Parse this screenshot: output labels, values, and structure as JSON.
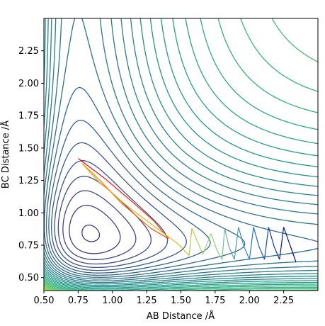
{
  "chart_data": {
    "type": "contour",
    "xlabel": "AB Distance /Å",
    "ylabel": "BC Distance /Å",
    "xlim": [
      0.5,
      2.5
    ],
    "ylim": [
      0.4,
      2.5
    ],
    "xticks": [
      "0.50",
      "0.75",
      "1.00",
      "1.25",
      "1.50",
      "1.75",
      "2.00",
      "2.25"
    ],
    "yticks": [
      "0.50",
      "0.75",
      "1.00",
      "1.25",
      "1.50",
      "1.75",
      "2.00",
      "2.25"
    ],
    "grid": false,
    "legend": "none",
    "colormap": "viridis",
    "contour_levels": 40,
    "trajectory": {
      "color_start": "#ff0000",
      "color_end": "#00008b",
      "points": [
        [
          0.75,
          1.42
        ],
        [
          0.95,
          1.26
        ],
        [
          1.15,
          1.08
        ],
        [
          1.3,
          0.94
        ],
        [
          1.41,
          0.8
        ],
        [
          1.28,
          0.88
        ],
        [
          1.06,
          1.08
        ],
        [
          0.9,
          1.26
        ],
        [
          0.78,
          1.38
        ],
        [
          0.9,
          1.24
        ],
        [
          1.1,
          1.06
        ],
        [
          1.3,
          0.9
        ],
        [
          1.48,
          0.76
        ],
        [
          1.56,
          0.67
        ],
        [
          1.58,
          0.88
        ],
        [
          1.62,
          0.78
        ],
        [
          1.66,
          0.68
        ],
        [
          1.72,
          0.84
        ],
        [
          1.76,
          0.72
        ],
        [
          1.8,
          0.64
        ],
        [
          1.82,
          0.88
        ],
        [
          1.85,
          0.74
        ],
        [
          1.89,
          0.64
        ],
        [
          1.92,
          0.89
        ],
        [
          1.96,
          0.74
        ],
        [
          2.0,
          0.64
        ],
        [
          2.03,
          0.89
        ],
        [
          2.07,
          0.74
        ],
        [
          2.11,
          0.64
        ],
        [
          2.14,
          0.89
        ],
        [
          2.18,
          0.74
        ],
        [
          2.22,
          0.64
        ],
        [
          2.25,
          0.89
        ],
        [
          2.3,
          0.74
        ],
        [
          2.34,
          0.62
        ]
      ]
    }
  }
}
